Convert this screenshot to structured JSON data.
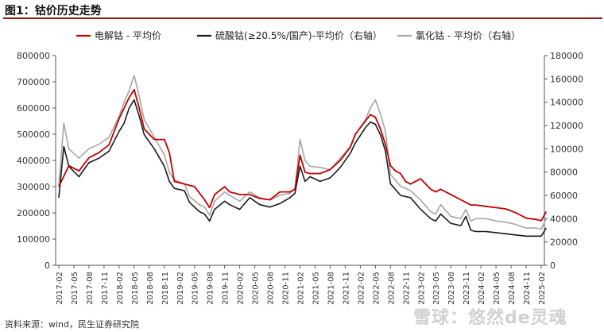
{
  "header": {
    "title": "图1：钴价历史走势"
  },
  "footer": {
    "source": "资料来源：wind，民生证券研究院",
    "watermark": "雪球：悠然de灵魂"
  },
  "chart_data": {
    "type": "line",
    "legend_position": "top",
    "grid": false,
    "colors": {
      "electrolytic": "#c00000",
      "sulfate": "#1a1a1a",
      "chloride": "#a6a6a6",
      "title_rule": "#8c1b1b"
    },
    "x_ticks": [
      "2017-02",
      "2017-05",
      "2017-08",
      "2017-11",
      "2018-02",
      "2018-05",
      "2018-08",
      "2018-11",
      "2019-02",
      "2019-05",
      "2019-08",
      "2019-11",
      "2020-02",
      "2020-05",
      "2020-08",
      "2020-11",
      "2021-02",
      "2021-05",
      "2021-08",
      "2021-11",
      "2022-02",
      "2022-05",
      "2022-08",
      "2022-11",
      "2023-02",
      "2023-05",
      "2023-08",
      "2023-11",
      "2024-02",
      "2024-05",
      "2024-08",
      "2024-11",
      "2025-02"
    ],
    "y_left": {
      "ticks": [
        "0",
        "100000",
        "200000",
        "300000",
        "400000",
        "500000",
        "600000",
        "700000",
        "800000"
      ],
      "ylim": [
        0,
        800000
      ]
    },
    "y_right": {
      "ticks": [
        "0",
        "20000",
        "40000",
        "60000",
        "80000",
        "100000",
        "120000",
        "140000",
        "160000",
        "180000"
      ],
      "ylim": [
        0,
        180000
      ]
    },
    "series": [
      {
        "name": "电解钴 - 平均价",
        "axis": "left",
        "x": [
          "2017-02",
          "2017-04",
          "2017-06",
          "2017-08",
          "2017-10",
          "2017-12",
          "2018-02",
          "2018-03",
          "2018-04",
          "2018-05",
          "2018-06",
          "2018-07",
          "2018-09",
          "2018-11",
          "2018-12",
          "2019-01",
          "2019-03",
          "2019-05",
          "2019-07",
          "2019-08",
          "2019-09",
          "2019-11",
          "2019-12",
          "2020-02",
          "2020-04",
          "2020-06",
          "2020-08",
          "2020-10",
          "2020-12",
          "2021-01",
          "2021-02",
          "2021-03",
          "2021-04",
          "2021-06",
          "2021-08",
          "2021-10",
          "2021-12",
          "2022-01",
          "2022-03",
          "2022-04",
          "2022-05",
          "2022-06",
          "2022-07",
          "2022-08",
          "2022-09",
          "2022-10",
          "2022-11",
          "2022-12",
          "2023-02",
          "2023-04",
          "2023-05",
          "2023-06",
          "2023-08",
          "2023-10",
          "2023-11",
          "2023-12",
          "2024-01",
          "2024-03",
          "2024-05",
          "2024-07",
          "2024-09",
          "2024-11",
          "2025-01",
          "2025-02",
          "2025-03"
        ],
        "y": [
          300000,
          380000,
          360000,
          410000,
          430000,
          460000,
          560000,
          600000,
          640000,
          670000,
          600000,
          520000,
          480000,
          480000,
          430000,
          320000,
          310000,
          300000,
          250000,
          220000,
          270000,
          300000,
          280000,
          270000,
          270000,
          255000,
          250000,
          280000,
          280000,
          290000,
          420000,
          355000,
          350000,
          350000,
          365000,
          400000,
          450000,
          500000,
          550000,
          575000,
          565000,
          520000,
          460000,
          380000,
          360000,
          350000,
          320000,
          310000,
          330000,
          290000,
          280000,
          290000,
          270000,
          250000,
          240000,
          230000,
          230000,
          225000,
          220000,
          215000,
          200000,
          180000,
          175000,
          170000,
          205000
        ]
      },
      {
        "name": "硫酸钴(≥20.5%/国产)-平均价（右轴）",
        "axis": "right",
        "x": [
          "2017-02",
          "2017-03",
          "2017-04",
          "2017-06",
          "2017-08",
          "2017-10",
          "2017-12",
          "2018-02",
          "2018-03",
          "2018-04",
          "2018-05",
          "2018-06",
          "2018-07",
          "2018-09",
          "2018-11",
          "2018-12",
          "2019-01",
          "2019-03",
          "2019-04",
          "2019-06",
          "2019-07",
          "2019-08",
          "2019-09",
          "2019-11",
          "2019-12",
          "2020-02",
          "2020-04",
          "2020-06",
          "2020-08",
          "2020-10",
          "2020-12",
          "2021-01",
          "2021-02",
          "2021-03",
          "2021-04",
          "2021-06",
          "2021-08",
          "2021-10",
          "2021-12",
          "2022-01",
          "2022-03",
          "2022-04",
          "2022-05",
          "2022-06",
          "2022-07",
          "2022-08",
          "2022-10",
          "2022-12",
          "2023-02",
          "2023-04",
          "2023-05",
          "2023-06",
          "2023-08",
          "2023-10",
          "2023-11",
          "2023-12",
          "2024-01",
          "2024-03",
          "2024-05",
          "2024-07",
          "2024-09",
          "2024-11",
          "2025-01",
          "2025-02",
          "2025-03"
        ],
        "y": [
          58000,
          102000,
          85000,
          76000,
          88000,
          92000,
          98000,
          115000,
          122000,
          135000,
          142000,
          128000,
          112000,
          100000,
          85000,
          72000,
          66000,
          64000,
          54000,
          46000,
          44000,
          38000,
          48000,
          55000,
          52000,
          48000,
          58000,
          52000,
          50000,
          53000,
          58000,
          62000,
          85000,
          72000,
          76000,
          72000,
          75000,
          84000,
          96000,
          105000,
          118000,
          123000,
          121000,
          112000,
          98000,
          70000,
          60000,
          58000,
          48000,
          40000,
          38000,
          44000,
          36000,
          34000,
          42000,
          30000,
          29000,
          29000,
          28000,
          27000,
          26000,
          25000,
          25000,
          25000,
          32000
        ]
      },
      {
        "name": "氯化钴 - 平均价（右轴）",
        "axis": "right",
        "x": [
          "2017-02",
          "2017-03",
          "2017-04",
          "2017-06",
          "2017-08",
          "2017-10",
          "2017-12",
          "2018-02",
          "2018-03",
          "2018-04",
          "2018-05",
          "2018-06",
          "2018-07",
          "2018-09",
          "2018-11",
          "2018-12",
          "2019-01",
          "2019-03",
          "2019-04",
          "2019-06",
          "2019-07",
          "2019-08",
          "2019-09",
          "2019-11",
          "2019-12",
          "2020-02",
          "2020-04",
          "2020-06",
          "2020-08",
          "2020-10",
          "2020-12",
          "2021-01",
          "2021-02",
          "2021-03",
          "2021-04",
          "2021-06",
          "2021-08",
          "2021-10",
          "2021-12",
          "2022-01",
          "2022-03",
          "2022-04",
          "2022-05",
          "2022-06",
          "2022-07",
          "2022-08",
          "2022-10",
          "2022-12",
          "2023-02",
          "2023-04",
          "2023-05",
          "2023-06",
          "2023-08",
          "2023-10",
          "2023-11",
          "2023-12",
          "2024-01",
          "2024-03",
          "2024-05",
          "2024-07",
          "2024-09",
          "2024-11",
          "2025-01",
          "2025-02",
          "2025-03"
        ],
        "y": [
          68000,
          122000,
          100000,
          92000,
          100000,
          104000,
          110000,
          128000,
          140000,
          150000,
          163000,
          145000,
          125000,
          110000,
          95000,
          80000,
          73000,
          70000,
          59000,
          52000,
          50000,
          43000,
          55000,
          63000,
          60000,
          55000,
          63000,
          58000,
          56000,
          60000,
          62000,
          66000,
          108000,
          90000,
          85000,
          84000,
          82000,
          92000,
          102000,
          112000,
          125000,
          135000,
          142000,
          130000,
          115000,
          78000,
          68000,
          64000,
          56000,
          46000,
          44000,
          52000,
          42000,
          40000,
          48000,
          38000,
          40000,
          40000,
          38000,
          37000,
          35000,
          32000,
          32000,
          31000,
          40000
        ]
      }
    ]
  }
}
